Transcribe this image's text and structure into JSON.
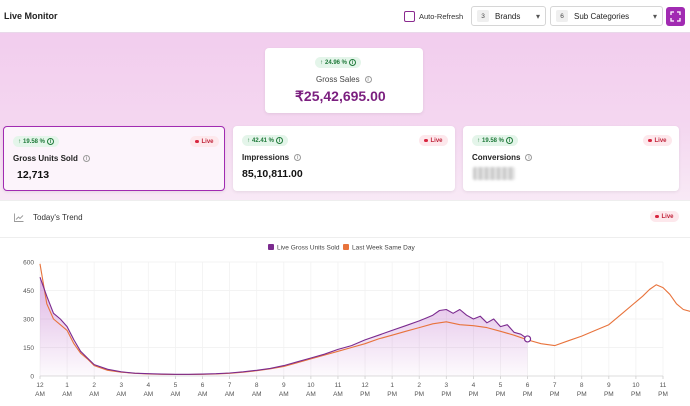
{
  "header": {
    "title": "Live Monitor",
    "auto_refresh_label": "Auto-Refresh",
    "brands": {
      "count": "3",
      "label": "Brands"
    },
    "sub_categories": {
      "count": "6",
      "label": "Sub Categories"
    }
  },
  "gross_sales": {
    "change": "24.96 %",
    "label": "Gross Sales",
    "value": "₹25,42,695.00"
  },
  "metrics": [
    {
      "change": "19.58 %",
      "label": "Gross Units Sold",
      "value": "12,713",
      "badge": "Live"
    },
    {
      "change": "42.41 %",
      "label": "Impressions",
      "value": "85,10,811.00",
      "badge": "Live"
    },
    {
      "change": "19.58 %",
      "label": "Conversions",
      "value": "",
      "badge": "Live"
    }
  ],
  "trend": {
    "title": "Today's Trend",
    "badge": "Live"
  },
  "colors": {
    "accent": "#a12bb2",
    "series_live": "#7b2b8f",
    "series_last_week": "#e8733c",
    "positive": "#1f7a3a",
    "live_red": "#c0243a"
  },
  "chart_data": {
    "type": "line",
    "legend": [
      "Live Gross Units Sold",
      "Last Week Same Day"
    ],
    "y_ticks": [
      "0",
      "150",
      "300",
      "450",
      "600"
    ],
    "ylim": [
      0,
      600
    ],
    "x_ticks": [
      {
        "h": "12",
        "p": "AM"
      },
      {
        "h": "1",
        "p": "AM"
      },
      {
        "h": "2",
        "p": "AM"
      },
      {
        "h": "3",
        "p": "AM"
      },
      {
        "h": "4",
        "p": "AM"
      },
      {
        "h": "5",
        "p": "AM"
      },
      {
        "h": "6",
        "p": "AM"
      },
      {
        "h": "7",
        "p": "AM"
      },
      {
        "h": "8",
        "p": "AM"
      },
      {
        "h": "9",
        "p": "AM"
      },
      {
        "h": "10",
        "p": "AM"
      },
      {
        "h": "11",
        "p": "AM"
      },
      {
        "h": "12",
        "p": "PM"
      },
      {
        "h": "1",
        "p": "PM"
      },
      {
        "h": "2",
        "p": "PM"
      },
      {
        "h": "3",
        "p": "PM"
      },
      {
        "h": "4",
        "p": "PM"
      },
      {
        "h": "5",
        "p": "PM"
      },
      {
        "h": "6",
        "p": "PM"
      },
      {
        "h": "7",
        "p": "PM"
      },
      {
        "h": "8",
        "p": "PM"
      },
      {
        "h": "9",
        "p": "PM"
      },
      {
        "h": "10",
        "p": "PM"
      },
      {
        "h": "11",
        "p": "PM"
      }
    ],
    "series": [
      {
        "name": "Live Gross Units Sold",
        "x": [
          0,
          0.25,
          0.5,
          0.75,
          1,
          1.25,
          1.5,
          1.75,
          2,
          2.5,
          3,
          3.5,
          4,
          4.5,
          5,
          5.5,
          6,
          6.5,
          7,
          7.5,
          8,
          8.5,
          9,
          9.5,
          10,
          10.5,
          11,
          11.5,
          12,
          12.5,
          13,
          13.5,
          14,
          14.25,
          14.5,
          14.75,
          15,
          15.25,
          15.5,
          15.75,
          16,
          16.25,
          16.5,
          16.75,
          17,
          17.25,
          17.5,
          17.75,
          18
        ],
        "values": [
          520,
          420,
          330,
          300,
          260,
          190,
          130,
          95,
          60,
          35,
          22,
          15,
          12,
          10,
          9,
          9,
          10,
          12,
          16,
          22,
          30,
          40,
          55,
          75,
          95,
          115,
          140,
          160,
          190,
          215,
          240,
          265,
          290,
          305,
          320,
          345,
          350,
          330,
          350,
          320,
          300,
          315,
          280,
          300,
          260,
          270,
          230,
          220,
          195
        ]
      },
      {
        "name": "Last Week Same Day",
        "x": [
          0,
          0.25,
          0.5,
          0.75,
          1,
          1.25,
          1.5,
          1.75,
          2,
          2.5,
          3,
          3.5,
          4,
          4.5,
          5,
          5.5,
          6,
          6.5,
          7,
          7.5,
          8,
          8.5,
          9,
          9.5,
          10,
          10.5,
          11,
          11.5,
          12,
          12.5,
          13,
          13.5,
          14,
          14.5,
          15,
          15.5,
          16,
          16.5,
          17,
          17.5,
          18,
          18.5,
          19,
          19.5,
          20,
          20.5,
          21,
          21.5,
          22,
          22.25,
          22.5,
          22.75,
          23,
          23.25,
          23.5,
          23.75,
          24
        ],
        "values": [
          590,
          380,
          300,
          270,
          240,
          170,
          120,
          90,
          55,
          30,
          20,
          14,
          11,
          9,
          8,
          8,
          9,
          11,
          14,
          20,
          28,
          38,
          50,
          70,
          90,
          110,
          130,
          150,
          170,
          195,
          215,
          235,
          255,
          275,
          285,
          270,
          265,
          255,
          235,
          215,
          190,
          170,
          160,
          185,
          210,
          240,
          270,
          330,
          390,
          420,
          455,
          480,
          465,
          430,
          380,
          350,
          340
        ]
      }
    ]
  }
}
